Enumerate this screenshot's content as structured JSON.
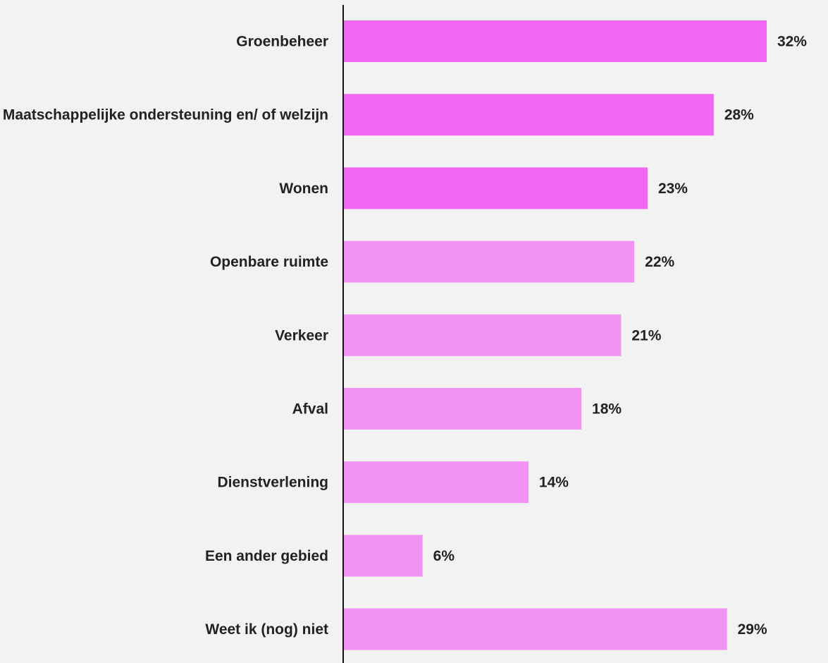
{
  "chart_data": {
    "type": "bar",
    "orientation": "horizontal",
    "categories": [
      "Groenbeheer",
      "Maatschappelijke ondersteuning en/ of welzijn",
      "Wonen",
      "Openbare ruimte",
      "Verkeer",
      "Afval",
      "Dienstverlening",
      "Een ander gebied",
      "Weet ik (nog) niet"
    ],
    "values": [
      32,
      28,
      23,
      22,
      21,
      18,
      14,
      6,
      29
    ],
    "value_labels": [
      "32%",
      "28%",
      "23%",
      "22%",
      "21%",
      "18%",
      "14%",
      "6%",
      "29%"
    ],
    "highlighted": [
      true,
      true,
      true,
      false,
      false,
      false,
      false,
      false,
      false
    ],
    "colors": {
      "highlight": "#f266f2",
      "normal": "#f292f2",
      "axis": "#111111",
      "text": "#222222",
      "background": "#f2f2f2"
    },
    "grid": false,
    "legend": "none"
  }
}
